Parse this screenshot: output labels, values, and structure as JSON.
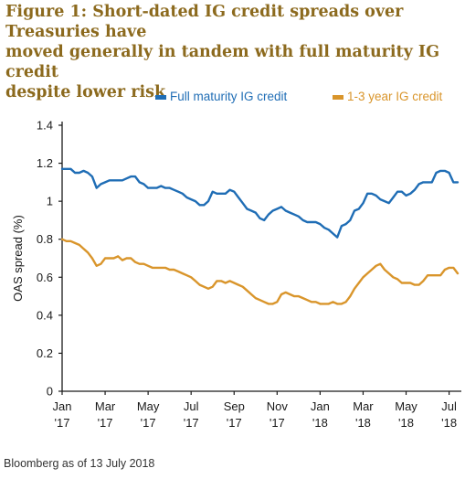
{
  "title_lines": [
    "Figure 1: Short-dated IG credit spreads over Treasuries have",
    "moved generally in tandem with full maturity IG credit",
    "despite lower risk"
  ],
  "source": "Bloomberg as of 13 July 2018",
  "colors": {
    "full": "#1f6db5",
    "short": "#d9952b",
    "title": "#8c6a1e",
    "axis": "#1a1a1a"
  },
  "chart_data": {
    "type": "line",
    "ylabel": "OAS spread (%)",
    "ylim": [
      0,
      1.4
    ],
    "yticks": [
      "0",
      "0.2",
      "0.4",
      "0.6",
      "0.8",
      "1",
      "1.2",
      "1.4"
    ],
    "x_tick_labels": [
      [
        "Jan",
        "'17"
      ],
      [
        "Mar",
        "'17"
      ],
      [
        "May",
        "'17"
      ],
      [
        "Jul",
        "'17"
      ],
      [
        "Sep",
        "'17"
      ],
      [
        "Nov",
        "'17"
      ],
      [
        "Jan",
        "'18"
      ],
      [
        "Mar",
        "'18"
      ],
      [
        "May",
        "'18"
      ],
      [
        "Jul",
        "'18"
      ]
    ],
    "x_months": [
      0,
      2,
      4,
      6,
      8,
      10,
      12,
      14,
      16,
      18
    ],
    "xlim_months": [
      0,
      18.4
    ],
    "legend": "top",
    "series": [
      {
        "name": "Full maturity IG credit",
        "x": [
          0,
          0.2,
          0.4,
          0.6,
          0.8,
          1.0,
          1.2,
          1.4,
          1.6,
          1.8,
          2.0,
          2.2,
          2.4,
          2.6,
          2.8,
          3.0,
          3.2,
          3.4,
          3.6,
          3.8,
          4.0,
          4.2,
          4.4,
          4.6,
          4.8,
          5.0,
          5.2,
          5.4,
          5.6,
          5.8,
          6.0,
          6.2,
          6.4,
          6.6,
          6.8,
          7.0,
          7.2,
          7.4,
          7.6,
          7.8,
          8.0,
          8.2,
          8.4,
          8.6,
          8.8,
          9.0,
          9.2,
          9.4,
          9.6,
          9.8,
          10.0,
          10.2,
          10.4,
          10.6,
          10.8,
          11.0,
          11.2,
          11.4,
          11.6,
          11.8,
          12.0,
          12.2,
          12.4,
          12.6,
          12.8,
          13.0,
          13.2,
          13.4,
          13.6,
          13.8,
          14.0,
          14.2,
          14.4,
          14.6,
          14.8,
          15.0,
          15.2,
          15.4,
          15.6,
          15.8,
          16.0,
          16.2,
          16.4,
          16.6,
          16.8,
          17.0,
          17.2,
          17.4,
          17.6,
          17.8,
          18.0,
          18.2,
          18.4
        ],
        "y": [
          1.17,
          1.17,
          1.17,
          1.15,
          1.15,
          1.16,
          1.15,
          1.13,
          1.07,
          1.09,
          1.1,
          1.11,
          1.11,
          1.11,
          1.11,
          1.12,
          1.13,
          1.13,
          1.1,
          1.09,
          1.07,
          1.07,
          1.07,
          1.08,
          1.07,
          1.07,
          1.06,
          1.05,
          1.04,
          1.02,
          1.01,
          1.0,
          0.98,
          0.98,
          1.0,
          1.05,
          1.04,
          1.04,
          1.04,
          1.06,
          1.05,
          1.02,
          0.99,
          0.96,
          0.95,
          0.94,
          0.91,
          0.9,
          0.93,
          0.95,
          0.96,
          0.97,
          0.95,
          0.94,
          0.93,
          0.92,
          0.9,
          0.89,
          0.89,
          0.89,
          0.88,
          0.86,
          0.85,
          0.83,
          0.81,
          0.87,
          0.88,
          0.9,
          0.95,
          0.96,
          0.99,
          1.04,
          1.04,
          1.03,
          1.01,
          1.0,
          0.99,
          1.02,
          1.05,
          1.05,
          1.03,
          1.04,
          1.06,
          1.09,
          1.1,
          1.1,
          1.1,
          1.15,
          1.16,
          1.16,
          1.15,
          1.1,
          1.1
        ]
      },
      {
        "name": "1-3 year IG credit",
        "x": [
          0,
          0.2,
          0.4,
          0.6,
          0.8,
          1.0,
          1.2,
          1.4,
          1.6,
          1.8,
          2.0,
          2.2,
          2.4,
          2.6,
          2.8,
          3.0,
          3.2,
          3.4,
          3.6,
          3.8,
          4.0,
          4.2,
          4.4,
          4.6,
          4.8,
          5.0,
          5.2,
          5.4,
          5.6,
          5.8,
          6.0,
          6.2,
          6.4,
          6.6,
          6.8,
          7.0,
          7.2,
          7.4,
          7.6,
          7.8,
          8.0,
          8.2,
          8.4,
          8.6,
          8.8,
          9.0,
          9.2,
          9.4,
          9.6,
          9.8,
          10.0,
          10.2,
          10.4,
          10.6,
          10.8,
          11.0,
          11.2,
          11.4,
          11.6,
          11.8,
          12.0,
          12.2,
          12.4,
          12.6,
          12.8,
          13.0,
          13.2,
          13.4,
          13.6,
          13.8,
          14.0,
          14.2,
          14.4,
          14.6,
          14.8,
          15.0,
          15.2,
          15.4,
          15.6,
          15.8,
          16.0,
          16.2,
          16.4,
          16.6,
          16.8,
          17.0,
          17.2,
          17.4,
          17.6,
          17.8,
          18.0,
          18.2,
          18.4
        ],
        "y": [
          0.8,
          0.79,
          0.79,
          0.78,
          0.77,
          0.75,
          0.73,
          0.7,
          0.66,
          0.67,
          0.7,
          0.7,
          0.7,
          0.71,
          0.69,
          0.7,
          0.7,
          0.68,
          0.67,
          0.67,
          0.66,
          0.65,
          0.65,
          0.65,
          0.65,
          0.64,
          0.64,
          0.63,
          0.62,
          0.61,
          0.6,
          0.58,
          0.56,
          0.55,
          0.54,
          0.55,
          0.58,
          0.58,
          0.57,
          0.58,
          0.57,
          0.56,
          0.55,
          0.53,
          0.51,
          0.49,
          0.48,
          0.47,
          0.46,
          0.46,
          0.47,
          0.51,
          0.52,
          0.51,
          0.5,
          0.5,
          0.49,
          0.48,
          0.47,
          0.47,
          0.46,
          0.46,
          0.46,
          0.47,
          0.46,
          0.46,
          0.47,
          0.5,
          0.54,
          0.57,
          0.6,
          0.62,
          0.64,
          0.66,
          0.67,
          0.64,
          0.62,
          0.6,
          0.59,
          0.57,
          0.57,
          0.57,
          0.56,
          0.56,
          0.58,
          0.61,
          0.61,
          0.61,
          0.61,
          0.64,
          0.65,
          0.65,
          0.62
        ]
      }
    ]
  }
}
